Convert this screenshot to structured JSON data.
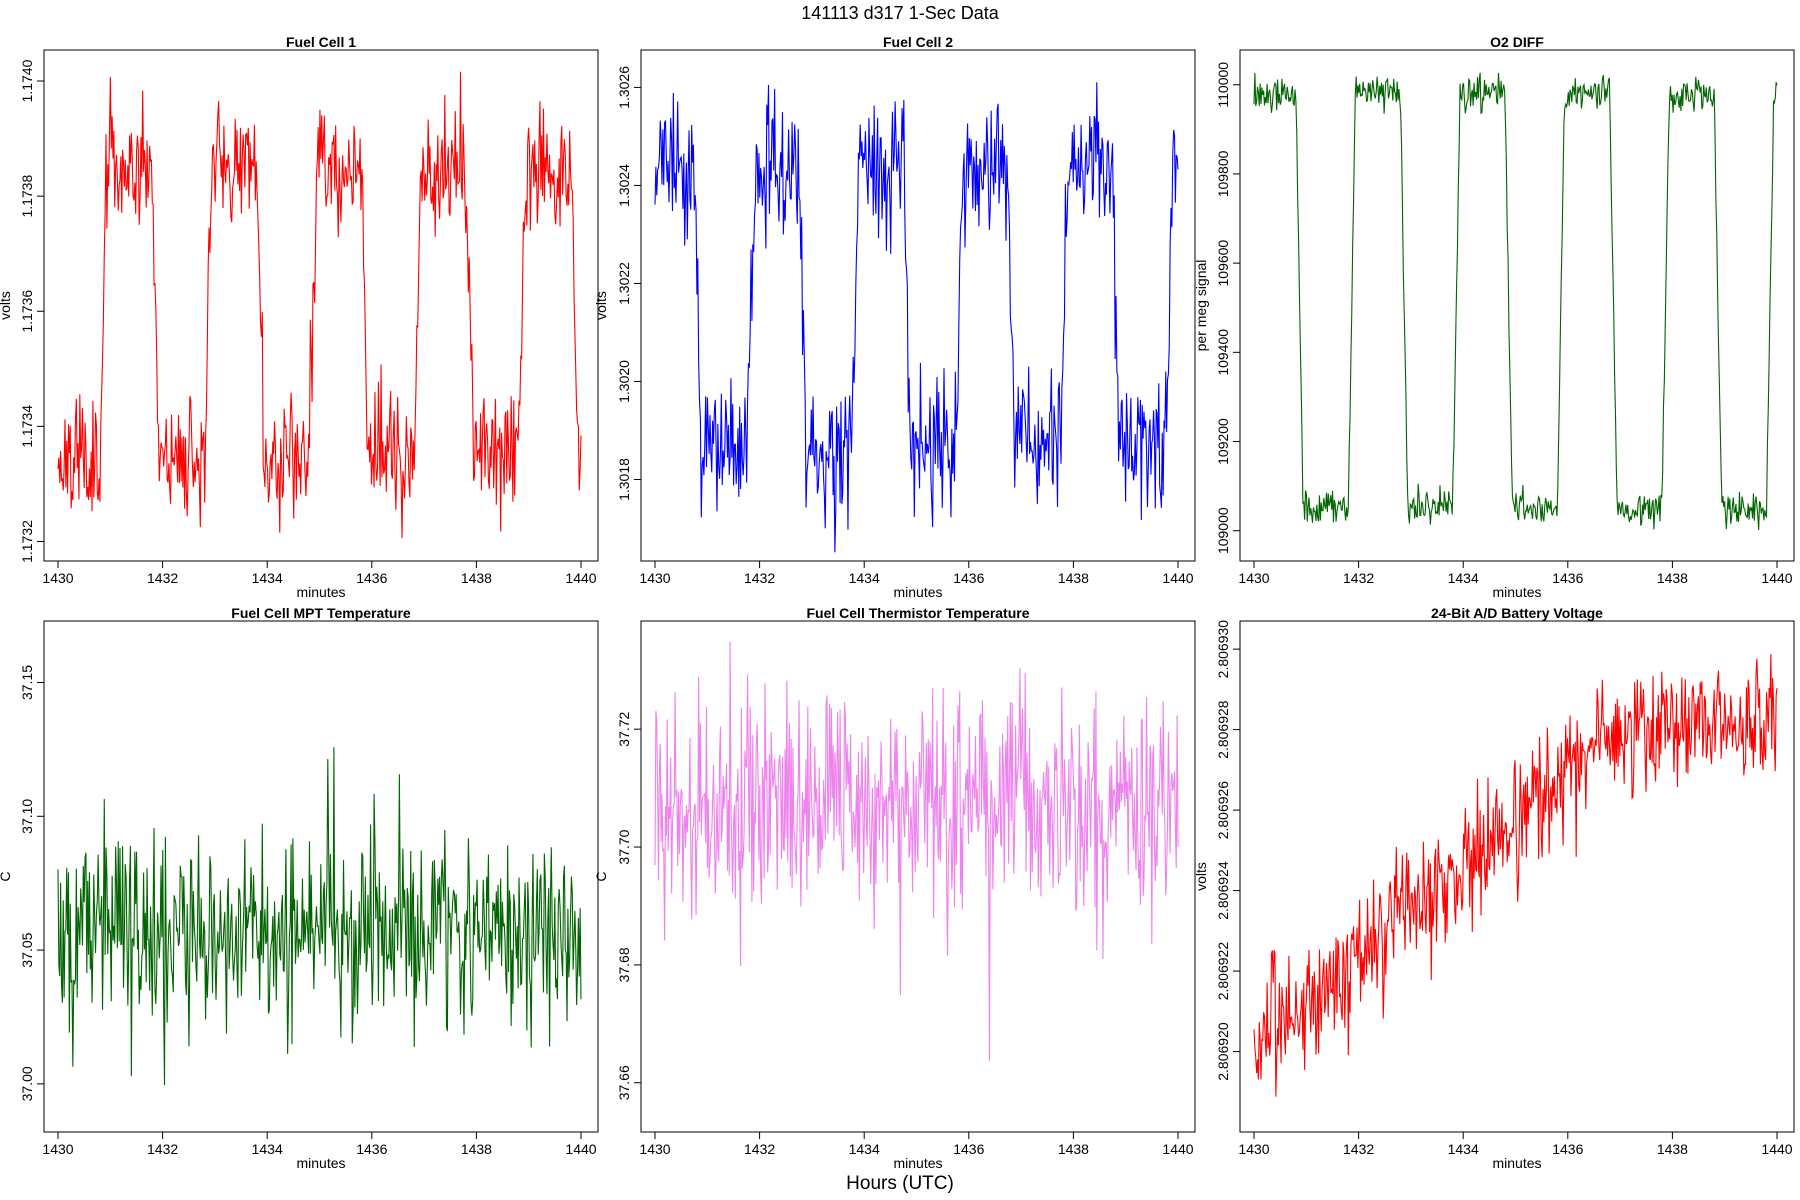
{
  "figure": {
    "suptitle": "141113   d317   1-Sec Data",
    "xlabel_bottom": "Hours (UTC)"
  },
  "chart_data": [
    {
      "type": "line",
      "title": "Fuel Cell 1",
      "xlabel": "minutes",
      "ylabel": "volts",
      "color": "#ff0000",
      "xlim": [
        1430,
        1440
      ],
      "ylim": [
        1.17318,
        1.17404
      ],
      "xticks": [
        1430,
        1432,
        1434,
        1436,
        1438,
        1440
      ],
      "xtick_labels": [
        "1430",
        "1432",
        "1434",
        "1436",
        "1438",
        "1440"
      ],
      "yticks": [
        1.1732,
        1.1734,
        1.1736,
        1.1738,
        1.174
      ],
      "ytick_labels": [
        "1.1732",
        "1.1734",
        "1.1736",
        "1.1738",
        "1.1740"
      ],
      "series": [
        {
          "name": "Fuel Cell 1",
          "pattern": "square",
          "period": 2.0,
          "high_start": 0.8,
          "high_len": 1.0,
          "low": 1.17335,
          "high": 1.17385,
          "noise": 7e-05,
          "drift": 5e-06,
          "seed": 11
        }
      ]
    },
    {
      "type": "line",
      "title": "Fuel Cell 2",
      "xlabel": "minutes",
      "ylabel": "volts",
      "color": "#0000ff",
      "xlim": [
        1430,
        1440
      ],
      "ylim": [
        1.30165,
        1.30266
      ],
      "xticks": [
        1430,
        1432,
        1434,
        1436,
        1438,
        1440
      ],
      "xtick_labels": [
        "1430",
        "1432",
        "1434",
        "1436",
        "1438",
        "1440"
      ],
      "yticks": [
        1.3018,
        1.302,
        1.3022,
        1.3024,
        1.3026
      ],
      "ytick_labels": [
        "1.3018",
        "1.3020",
        "1.3022",
        "1.3024",
        "1.3026"
      ],
      "series": [
        {
          "name": "Fuel Cell 2",
          "pattern": "square",
          "period": 2.0,
          "high_start": 1.75,
          "high_len": 1.0,
          "low": 1.30185,
          "high": 1.30243,
          "noise": 9e-05,
          "drift": 1e-05,
          "seed": 23
        }
      ]
    },
    {
      "type": "line",
      "title": "O2 DIFF",
      "xlabel": "minutes",
      "ylabel": "per meg signal",
      "color": "#006400",
      "xlim": [
        1430,
        1440
      ],
      "ylim": [
        108950,
        110060
      ],
      "xticks": [
        1430,
        1432,
        1434,
        1436,
        1438,
        1440
      ],
      "xtick_labels": [
        "1430",
        "1432",
        "1434",
        "1436",
        "1438",
        "1440"
      ],
      "yticks": [
        109000,
        109200,
        109400,
        109600,
        109800,
        110000
      ],
      "ytick_labels": [
        "109000",
        "109200",
        "109400",
        "109600",
        "109800",
        "110000"
      ],
      "series": [
        {
          "name": "O2 DIFF",
          "pattern": "square",
          "period": 2.0,
          "high_start": 1.8,
          "high_len": 1.0,
          "low": 109050,
          "high": 109985,
          "noise": 25,
          "drift": 0,
          "seed": 37
        }
      ]
    },
    {
      "type": "line",
      "title": "Fuel Cell MPT Temperature",
      "xlabel": "minutes",
      "ylabel": "C",
      "color": "#006400",
      "xlim": [
        1430,
        1440
      ],
      "ylim": [
        36.985,
        37.17
      ],
      "xticks": [
        1430,
        1432,
        1434,
        1436,
        1438,
        1440
      ],
      "xtick_labels": [
        "1430",
        "1432",
        "1434",
        "1436",
        "1438",
        "1440"
      ],
      "yticks": [
        37.0,
        37.05,
        37.1,
        37.15
      ],
      "ytick_labels": [
        "37.00",
        "37.05",
        "37.10",
        "37.15"
      ],
      "series": [
        {
          "name": "Fuel Cell MPT Temperature",
          "pattern": "noise",
          "mean": 37.057,
          "noise": 0.017,
          "drift": 0,
          "seed": 51
        }
      ]
    },
    {
      "type": "line",
      "title": "Fuel Cell Thermistor Temperature",
      "xlabel": "minutes",
      "ylabel": "C",
      "color": "#ee82ee",
      "xlim": [
        1430,
        1440
      ],
      "ylim": [
        37.653,
        37.737
      ],
      "xticks": [
        1430,
        1432,
        1434,
        1436,
        1438,
        1440
      ],
      "xtick_labels": [
        "1430",
        "1432",
        "1434",
        "1436",
        "1438",
        "1440"
      ],
      "yticks": [
        37.66,
        37.68,
        37.7,
        37.72
      ],
      "ytick_labels": [
        "37.66",
        "37.68",
        "37.70",
        "37.72"
      ],
      "series": [
        {
          "name": "Fuel Cell Thermistor Temperature",
          "pattern": "noise",
          "mean": 37.706,
          "noise": 0.009,
          "drift": 0,
          "seed": 67
        }
      ]
    },
    {
      "type": "line",
      "title": "24-Bit A/D Battery Voltage",
      "xlabel": "minutes",
      "ylabel": "volts",
      "color": "#ff0000",
      "xlim": [
        1430,
        1440
      ],
      "ylim": [
        2.8069182,
        2.8069305
      ],
      "xticks": [
        1430,
        1432,
        1434,
        1436,
        1438,
        1440
      ],
      "xtick_labels": [
        "1430",
        "1432",
        "1434",
        "1436",
        "1438",
        "1440"
      ],
      "yticks": [
        2.80692,
        2.806922,
        2.806924,
        2.806926,
        2.806928,
        2.80693
      ],
      "ytick_labels": [
        "2.806920",
        "2.806922",
        "2.806924",
        "2.806926",
        "2.806928",
        "2.806930"
      ],
      "series": [
        {
          "name": "24-Bit A/D Battery Voltage",
          "pattern": "trend",
          "start": 2.8069201,
          "end": 2.8069282,
          "plateau": 0.7,
          "noise": 8e-07,
          "seed": 83
        }
      ]
    }
  ]
}
